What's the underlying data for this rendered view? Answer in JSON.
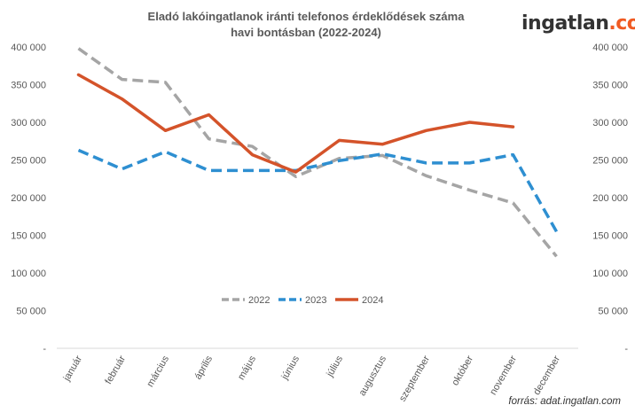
{
  "brand": {
    "name_part1": "ingatlan",
    "name_part2": ".com"
  },
  "source": "forrás: adat.ingatlan.com",
  "chart_data": {
    "type": "line",
    "title_line1": "Eladó lakóingatlanok iránti telefonos érdeklődések száma",
    "title_line2": "havi bontásban (2022-2024)",
    "categories": [
      "január",
      "február",
      "március",
      "április",
      "május",
      "június",
      "július",
      "augusztus",
      "szeptember",
      "október",
      "november",
      "december"
    ],
    "ylim": [
      0,
      400000
    ],
    "yticks": [
      {
        "value": 0,
        "label": "-"
      },
      {
        "value": 50000,
        "label": "50 000"
      },
      {
        "value": 100000,
        "label": "100 000"
      },
      {
        "value": 150000,
        "label": "150 000"
      },
      {
        "value": 200000,
        "label": "200 000"
      },
      {
        "value": 250000,
        "label": "250 000"
      },
      {
        "value": 300000,
        "label": "300 000"
      },
      {
        "value": 350000,
        "label": "350 000"
      },
      {
        "value": 400000,
        "label": "400 000"
      }
    ],
    "legend_position": "center",
    "series": [
      {
        "name": "2022",
        "color": "#a5a5a5",
        "style": "dashed",
        "values": [
          398000,
          357000,
          353000,
          278000,
          268000,
          228000,
          252000,
          256000,
          229000,
          210000,
          193000,
          122000
        ]
      },
      {
        "name": "2023",
        "color": "#2e8fd1",
        "style": "dashed",
        "values": [
          263000,
          238000,
          261000,
          236000,
          236000,
          236000,
          249000,
          258000,
          246000,
          246000,
          257000,
          155000
        ]
      },
      {
        "name": "2024",
        "color": "#d4532a",
        "style": "solid",
        "values": [
          363000,
          331000,
          289000,
          310000,
          257000,
          234000,
          276000,
          271000,
          289000,
          300000,
          294000,
          null
        ]
      }
    ]
  }
}
